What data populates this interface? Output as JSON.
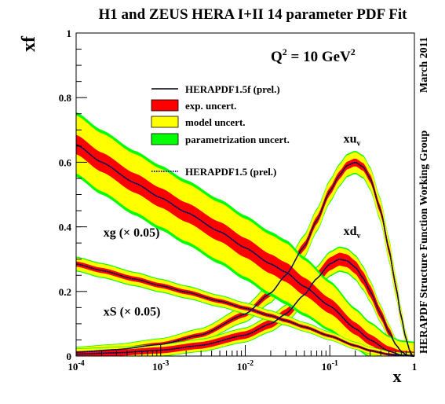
{
  "chart_data": {
    "type": "line",
    "title": "H1 and ZEUS HERA I+II 14 parameter PDF Fit",
    "scale_label": {
      "prefix": "Q",
      "power": "2",
      "suffix": " = 10 GeV",
      "unit_power": "2"
    },
    "side_top": "March 2011",
    "side_bottom": "HERAPDF Structure Function Working Group",
    "xlabel": "x",
    "ylabel": "xf",
    "x_scale": "log",
    "xlim": [
      0.0001,
      1
    ],
    "ylim": [
      0,
      1
    ],
    "y_ticks": [
      0,
      0.2,
      0.4,
      0.6,
      0.8,
      1
    ],
    "y_tick_labels": [
      "0",
      "0.2",
      "0.4",
      "0.6",
      "0.8",
      "1"
    ],
    "x_ticks": [
      {
        "value": 0.0001,
        "base": "10",
        "exp": "-4"
      },
      {
        "value": 0.001,
        "base": "10",
        "exp": "-3"
      },
      {
        "value": 0.01,
        "base": "10",
        "exp": "-2"
      },
      {
        "value": 0.1,
        "base": "10",
        "exp": "-1"
      },
      {
        "value": 1,
        "label": "1"
      }
    ],
    "legend": [
      {
        "label": "HERAPDF1.5f (prel.)",
        "kind": "line",
        "color": "#000000"
      },
      {
        "label": "exp. uncert.",
        "kind": "box",
        "color": "#ff0000"
      },
      {
        "label": "model uncert.",
        "kind": "box",
        "color": "#ffff00"
      },
      {
        "label": "parametrization uncert.",
        "kind": "box",
        "color": "#00ff00"
      },
      {
        "label": "HERAPDF1.5 (prel.)",
        "kind": "dotted",
        "color": "#1a1aa0"
      }
    ],
    "colors": {
      "exp": "#ff0000",
      "model": "#ffff00",
      "param": "#00ff00",
      "central": "#000000",
      "alt": "#1a1aa0"
    },
    "series": [
      {
        "name": "xu",
        "sub": "v",
        "label_at": [
          0.145,
          0.66
        ],
        "x": [
          0.0001,
          0.0003,
          0.001,
          0.003,
          0.01,
          0.02,
          0.03,
          0.05,
          0.07,
          0.1,
          0.13,
          0.16,
          0.2,
          0.25,
          0.3,
          0.4,
          0.5,
          0.6,
          0.7,
          0.8,
          0.9,
          0.95,
          1.0
        ],
        "values": [
          0.012,
          0.02,
          0.036,
          0.065,
          0.13,
          0.195,
          0.25,
          0.34,
          0.42,
          0.51,
          0.56,
          0.59,
          0.6,
          0.585,
          0.55,
          0.45,
          0.33,
          0.22,
          0.12,
          0.05,
          0.01,
          0.002,
          0.0
        ],
        "exp": 0.012,
        "model": 0.02,
        "param": 0.004
      },
      {
        "name": "xd",
        "sub": "v",
        "label_at": [
          0.145,
          0.375
        ],
        "x": [
          0.0001,
          0.0003,
          0.001,
          0.003,
          0.01,
          0.02,
          0.03,
          0.05,
          0.07,
          0.1,
          0.13,
          0.16,
          0.2,
          0.25,
          0.3,
          0.4,
          0.5,
          0.6,
          0.7,
          0.8,
          0.9,
          0.95,
          1.0
        ],
        "values": [
          0.006,
          0.01,
          0.018,
          0.033,
          0.065,
          0.1,
          0.13,
          0.19,
          0.24,
          0.285,
          0.3,
          0.295,
          0.275,
          0.24,
          0.2,
          0.13,
          0.075,
          0.036,
          0.014,
          0.004,
          0.0005,
          0.0001,
          0.0
        ],
        "exp": 0.02,
        "model": 0.015,
        "param": 0.004
      },
      {
        "name": "xg (× 0.05)",
        "label_at": [
          0.00021,
          0.37
        ],
        "x": [
          0.0001,
          0.0002,
          0.0005,
          0.001,
          0.002,
          0.005,
          0.01,
          0.02,
          0.03,
          0.05,
          0.1,
          0.2,
          0.3,
          0.5,
          0.7,
          1.0
        ],
        "values": [
          0.655,
          0.6,
          0.535,
          0.49,
          0.445,
          0.385,
          0.335,
          0.285,
          0.26,
          0.215,
          0.155,
          0.085,
          0.05,
          0.015,
          0.003,
          0.0
        ],
        "exp": 0.03,
        "model": 0.06,
        "param": 0.01
      },
      {
        "name": "xS (× 0.05)",
        "label_at": [
          0.00021,
          0.125
        ],
        "x": [
          0.0001,
          0.0002,
          0.0005,
          0.001,
          0.002,
          0.005,
          0.01,
          0.02,
          0.03,
          0.05,
          0.1,
          0.2,
          0.3,
          0.5,
          0.7,
          1.0
        ],
        "values": [
          0.285,
          0.265,
          0.238,
          0.218,
          0.198,
          0.17,
          0.148,
          0.125,
          0.11,
          0.09,
          0.062,
          0.032,
          0.017,
          0.005,
          0.001,
          0.0
        ],
        "exp": 0.008,
        "model": 0.012,
        "param": 0.003
      }
    ]
  }
}
